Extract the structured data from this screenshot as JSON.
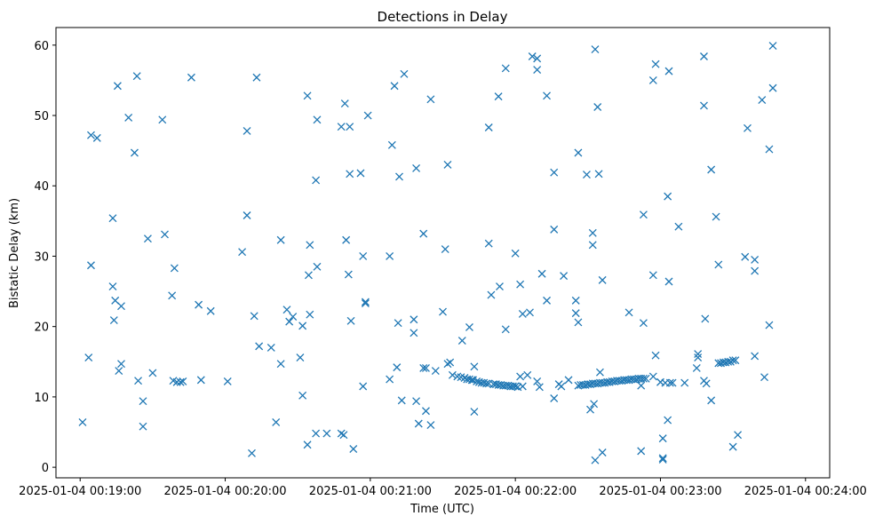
{
  "chart_data": {
    "type": "scatter",
    "title": "Detections in Delay",
    "xlabel": "Time (UTC)",
    "ylabel": "Bistatic Delay (km)",
    "marker": "x",
    "color": "#1f77b4",
    "xlim_seconds": [
      -10,
      310
    ],
    "ylim": [
      -1.5,
      62.5
    ],
    "x_ticks": [
      {
        "t": 0,
        "label": "2025-01-04 00:19:00"
      },
      {
        "t": 60,
        "label": "2025-01-04 00:20:00"
      },
      {
        "t": 120,
        "label": "2025-01-04 00:21:00"
      },
      {
        "t": 180,
        "label": "2025-01-04 00:22:00"
      },
      {
        "t": 240,
        "label": "2025-01-04 00:23:00"
      },
      {
        "t": 300,
        "label": "2025-01-04 00:24:00"
      }
    ],
    "y_ticks": [
      0,
      10,
      20,
      30,
      40,
      50,
      60
    ],
    "x_unit": "seconds after 2025-01-04 00:19:00",
    "points": [
      [
        1,
        6.4
      ],
      [
        3.5,
        15.6
      ],
      [
        4.5,
        47.2
      ],
      [
        4.5,
        28.7
      ],
      [
        7,
        46.8
      ],
      [
        13.5,
        25.7
      ],
      [
        13.5,
        35.4
      ],
      [
        14,
        20.9
      ],
      [
        14.5,
        23.7
      ],
      [
        15.5,
        54.2
      ],
      [
        16,
        13.7
      ],
      [
        17,
        22.9
      ],
      [
        17,
        14.7
      ],
      [
        20,
        49.7
      ],
      [
        22.5,
        44.7
      ],
      [
        23.5,
        55.6
      ],
      [
        24,
        12.3
      ],
      [
        26,
        5.8
      ],
      [
        26,
        9.4
      ],
      [
        28,
        32.5
      ],
      [
        30,
        13.4
      ],
      [
        34,
        49.4
      ],
      [
        35,
        33.1
      ],
      [
        38,
        24.4
      ],
      [
        39,
        28.3
      ],
      [
        38.5,
        12.3
      ],
      [
        40,
        12.1
      ],
      [
        41.5,
        12.1
      ],
      [
        42.5,
        12.2
      ],
      [
        46,
        55.4
      ],
      [
        50,
        12.4
      ],
      [
        49,
        23.1
      ],
      [
        54,
        22.2
      ],
      [
        61,
        12.2
      ],
      [
        67,
        30.6
      ],
      [
        69,
        47.8
      ],
      [
        69,
        35.8
      ],
      [
        71,
        2
      ],
      [
        72,
        21.5
      ],
      [
        73,
        55.4
      ],
      [
        74,
        17.2
      ],
      [
        79,
        17
      ],
      [
        81,
        6.4
      ],
      [
        83,
        32.3
      ],
      [
        83,
        14.7
      ],
      [
        85.5,
        22.4
      ],
      [
        86.5,
        20.7
      ],
      [
        88,
        21.4
      ],
      [
        91,
        15.6
      ],
      [
        92,
        20.1
      ],
      [
        92,
        10.2
      ],
      [
        94,
        52.8
      ],
      [
        94,
        3.2
      ],
      [
        94.5,
        27.3
      ],
      [
        95,
        31.6
      ],
      [
        95,
        21.7
      ],
      [
        97.5,
        40.8
      ],
      [
        97.5,
        4.8
      ],
      [
        98,
        49.4
      ],
      [
        98,
        28.5
      ],
      [
        102,
        4.8
      ],
      [
        108,
        48.4
      ],
      [
        108,
        4.8
      ],
      [
        109,
        4.6
      ],
      [
        109.5,
        51.7
      ],
      [
        110,
        32.3
      ],
      [
        111,
        27.4
      ],
      [
        111.5,
        48.4
      ],
      [
        111.5,
        41.7
      ],
      [
        112,
        20.8
      ],
      [
        113,
        2.6
      ],
      [
        116,
        41.8
      ],
      [
        117,
        30
      ],
      [
        117,
        11.5
      ],
      [
        118,
        23.5
      ],
      [
        118,
        23.3
      ],
      [
        119,
        50
      ],
      [
        128,
        12.5
      ],
      [
        128,
        30
      ],
      [
        129,
        45.8
      ],
      [
        130,
        54.2
      ],
      [
        131,
        14.2
      ],
      [
        131.5,
        20.5
      ],
      [
        132,
        41.3
      ],
      [
        133,
        9.5
      ],
      [
        134,
        55.9
      ],
      [
        138,
        21
      ],
      [
        138,
        19.1
      ],
      [
        139,
        42.5
      ],
      [
        139,
        9.4
      ],
      [
        140,
        6.2
      ],
      [
        142,
        33.2
      ],
      [
        142,
        14.1
      ],
      [
        143,
        14.1
      ],
      [
        143,
        8
      ],
      [
        145,
        52.3
      ],
      [
        145,
        6
      ],
      [
        147,
        13.7
      ],
      [
        150,
        22.1
      ],
      [
        151,
        31
      ],
      [
        152,
        43
      ],
      [
        152,
        14.7
      ],
      [
        153,
        14.9
      ],
      [
        154,
        13.1
      ],
      [
        156,
        12.9
      ],
      [
        157.5,
        12.8
      ],
      [
        158,
        18
      ],
      [
        159,
        12.7
      ],
      [
        160,
        12.5
      ],
      [
        161,
        19.9
      ],
      [
        161,
        12.5
      ],
      [
        162,
        12.4
      ],
      [
        162.5,
        12.4
      ],
      [
        163,
        7.9
      ],
      [
        163,
        14.3
      ],
      [
        164,
        12.2
      ],
      [
        165,
        12.1
      ],
      [
        166,
        12
      ],
      [
        167,
        12
      ],
      [
        168,
        11.9
      ],
      [
        169,
        31.8
      ],
      [
        169,
        48.3
      ],
      [
        169,
        11.9
      ],
      [
        170,
        24.5
      ],
      [
        171,
        11.8
      ],
      [
        172,
        11.8
      ],
      [
        173,
        52.7
      ],
      [
        173,
        11.7
      ],
      [
        173.5,
        25.7
      ],
      [
        174,
        11.7
      ],
      [
        175,
        11.6
      ],
      [
        176,
        56.7
      ],
      [
        176,
        19.6
      ],
      [
        176,
        11.6
      ],
      [
        177,
        11.6
      ],
      [
        178,
        11.5
      ],
      [
        179,
        11.5
      ],
      [
        180,
        11.5
      ],
      [
        180,
        30.4
      ],
      [
        181,
        11.4
      ],
      [
        182,
        26
      ],
      [
        182,
        12.9
      ],
      [
        183,
        21.8
      ],
      [
        183,
        11.5
      ],
      [
        185,
        13.1
      ],
      [
        186,
        22
      ],
      [
        187,
        58.4
      ],
      [
        189,
        56.5
      ],
      [
        189,
        58.1
      ],
      [
        189,
        12.2
      ],
      [
        190,
        11.4
      ],
      [
        191,
        27.5
      ],
      [
        193,
        52.8
      ],
      [
        193,
        23.7
      ],
      [
        196,
        41.9
      ],
      [
        196,
        33.8
      ],
      [
        196,
        9.8
      ],
      [
        198,
        11.8
      ],
      [
        199,
        11.5
      ],
      [
        200,
        27.2
      ],
      [
        202,
        12.4
      ],
      [
        205,
        23.7
      ],
      [
        205,
        21.9
      ],
      [
        206,
        20.6
      ],
      [
        206,
        11.6
      ],
      [
        206,
        44.7
      ],
      [
        207,
        11.7
      ],
      [
        208,
        11.7
      ],
      [
        209,
        11.7
      ],
      [
        209.5,
        41.6
      ],
      [
        210,
        11.8
      ],
      [
        211,
        11.8
      ],
      [
        211,
        8.2
      ],
      [
        212,
        11.9
      ],
      [
        212,
        33.3
      ],
      [
        212,
        31.6
      ],
      [
        212.5,
        9
      ],
      [
        213,
        11.9
      ],
      [
        213,
        1
      ],
      [
        213,
        59.4
      ],
      [
        214,
        11.9
      ],
      [
        214,
        51.2
      ],
      [
        214.5,
        41.7
      ],
      [
        215,
        12
      ],
      [
        215,
        13.5
      ],
      [
        216,
        12
      ],
      [
        216,
        26.6
      ],
      [
        216,
        2.1
      ],
      [
        217,
        12
      ],
      [
        218,
        12.1
      ],
      [
        219,
        12.1
      ],
      [
        220,
        12.2
      ],
      [
        221,
        12.2
      ],
      [
        222,
        12.3
      ],
      [
        223,
        12.3
      ],
      [
        224,
        12.3
      ],
      [
        225,
        12.4
      ],
      [
        226,
        12.4
      ],
      [
        227,
        12.4
      ],
      [
        227,
        22
      ],
      [
        228,
        12.5
      ],
      [
        229,
        12.5
      ],
      [
        230,
        12.5
      ],
      [
        231,
        12.6
      ],
      [
        232,
        12.6
      ],
      [
        232,
        11.6
      ],
      [
        232,
        2.3
      ],
      [
        233,
        20.5
      ],
      [
        233,
        12.6
      ],
      [
        233,
        35.9
      ],
      [
        234,
        12.6
      ],
      [
        237,
        12.9
      ],
      [
        237,
        27.3
      ],
      [
        237,
        55
      ],
      [
        238,
        57.3
      ],
      [
        238,
        15.9
      ],
      [
        240,
        12.1
      ],
      [
        241,
        1.3
      ],
      [
        241,
        4.1
      ],
      [
        241,
        1.1
      ],
      [
        242,
        12
      ],
      [
        243,
        38.5
      ],
      [
        243,
        6.7
      ],
      [
        243.5,
        26.4
      ],
      [
        243.5,
        56.3
      ],
      [
        244,
        12
      ],
      [
        245,
        12
      ],
      [
        247.5,
        34.2
      ],
      [
        250,
        12
      ],
      [
        255,
        14.1
      ],
      [
        255.5,
        16.1
      ],
      [
        255.5,
        15.6
      ],
      [
        258,
        12.3
      ],
      [
        258,
        58.4
      ],
      [
        258,
        51.4
      ],
      [
        258.5,
        21.1
      ],
      [
        259,
        11.9
      ],
      [
        261,
        42.3
      ],
      [
        261,
        9.5
      ],
      [
        263,
        35.6
      ],
      [
        264,
        28.8
      ],
      [
        264,
        14.8
      ],
      [
        265,
        14.8
      ],
      [
        266,
        14.9
      ],
      [
        267,
        14.9
      ],
      [
        268,
        15
      ],
      [
        269,
        15
      ],
      [
        270,
        15.2
      ],
      [
        270,
        2.9
      ],
      [
        271,
        15.2
      ],
      [
        272,
        4.6
      ],
      [
        275,
        29.9
      ],
      [
        276,
        48.2
      ],
      [
        279,
        29.5
      ],
      [
        279,
        15.8
      ],
      [
        279,
        27.9
      ],
      [
        282,
        52.2
      ],
      [
        283,
        12.8
      ],
      [
        285,
        20.2
      ],
      [
        285,
        45.2
      ],
      [
        286.5,
        53.9
      ],
      [
        286.5,
        59.9
      ]
    ]
  }
}
